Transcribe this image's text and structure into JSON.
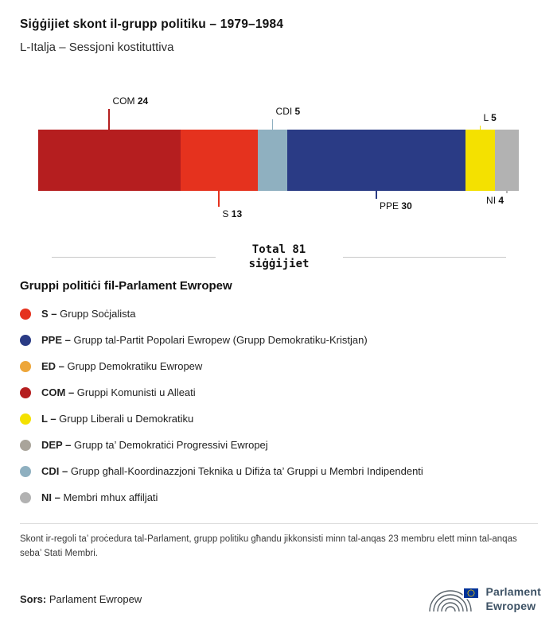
{
  "header": {
    "title": "Siġġijiet skont il-grupp politiku – 1979–1984",
    "subtitle": "L-Italja – Sessjoni kostituttiva"
  },
  "chart_data": {
    "type": "bar",
    "stacked": true,
    "orientation": "horizontal",
    "title": "Siġġijiet skont il-grupp politiku – 1979–1984",
    "subtitle": "L-Italja – Sessjoni kostituttiva",
    "total": 81,
    "total_line1": "Total 81",
    "total_line2": "siġġijiet",
    "categories": [
      "COM",
      "S",
      "CDI",
      "PPE",
      "L",
      "NI"
    ],
    "values": [
      24,
      13,
      5,
      30,
      5,
      4
    ],
    "segments": [
      {
        "code": "COM",
        "seats": 24,
        "color": "#b51e1f",
        "label_side": "top",
        "leader": 26,
        "anchor": "after"
      },
      {
        "code": "S",
        "seats": 13,
        "color": "#e5321e",
        "label_side": "bottom",
        "leader": 20,
        "anchor": "after"
      },
      {
        "code": "CDI",
        "seats": 5,
        "color": "#8fb0c0",
        "label_side": "top",
        "leader": 13,
        "anchor": "after"
      },
      {
        "code": "PPE",
        "seats": 30,
        "color": "#2a3b85",
        "label_side": "bottom",
        "leader": 10,
        "anchor": "after"
      },
      {
        "code": "L",
        "seats": 5,
        "color": "#f4e100",
        "label_side": "top",
        "leader": 5,
        "anchor": "after"
      },
      {
        "code": "NI",
        "seats": 4,
        "color": "#b2b2b2",
        "label_side": "bottom",
        "leader": 3,
        "anchor": "before"
      }
    ]
  },
  "legend": {
    "heading": "Gruppi politiċi fil-Parlament Ewropew",
    "separator": " – ",
    "items": [
      {
        "code": "S",
        "name": "Grupp Soċjalista",
        "color": "#e5321e"
      },
      {
        "code": "PPE",
        "name": "Grupp tal-Partit Popolari Ewropew (Grupp Demokratiku-Kristjan)",
        "color": "#2a3b85"
      },
      {
        "code": "ED",
        "name": "Grupp Demokratiku Ewropew",
        "color": "#eda63a"
      },
      {
        "code": "COM",
        "name": "Gruppi Komunisti u Alleati",
        "color": "#b51e1f"
      },
      {
        "code": "L",
        "name": "Grupp Liberali u Demokratiku",
        "color": "#f4e100"
      },
      {
        "code": "DEP",
        "name": "Grupp ta’ Demokratiċi Progressivi Ewropej",
        "color": "#a9a49a"
      },
      {
        "code": "CDI",
        "name": "Grupp għall-Koordinazzjoni Teknika u Difiża ta’ Gruppi u Membri Indipendenti",
        "color": "#8fb0c0"
      },
      {
        "code": "NI",
        "name": "Membri mhux affiljati",
        "color": "#b2b2b2"
      }
    ]
  },
  "footnote": "Skont ir-regoli ta’ proċedura tal-Parlament, grupp politiku għandu jikkonsisti minn tal-anqas 23 membru elett minn tal-anqas seba’ Stati Membri.",
  "source": {
    "label": "Sors:",
    "value": "Parlament Ewropew"
  },
  "logo": {
    "line1": "Parlament",
    "line2": "Ewropew"
  }
}
